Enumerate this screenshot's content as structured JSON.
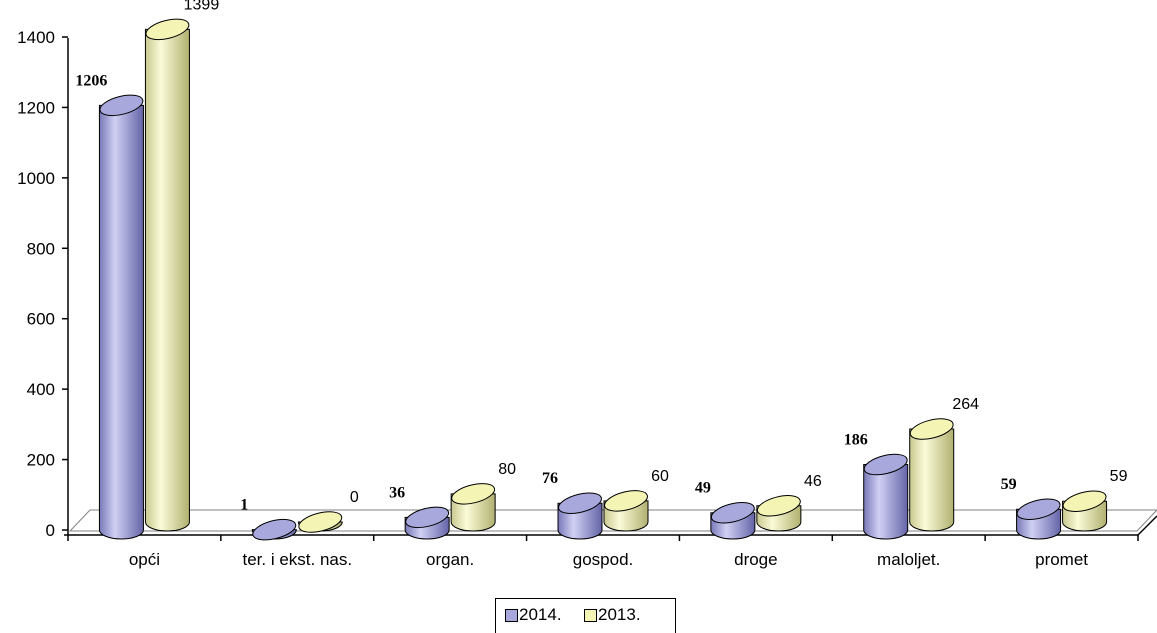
{
  "chart_data": {
    "type": "bar",
    "style": "3d-cylinder",
    "categories": [
      "opći",
      "ter. i ekst. nas.",
      "organ.",
      "gospod.",
      "droge",
      "maloljet.",
      "promet"
    ],
    "series": [
      {
        "name": "2014.",
        "values": [
          1206,
          1,
          36,
          76,
          49,
          186,
          59
        ],
        "color": "#a8a8dc",
        "label_bold": true
      },
      {
        "name": "2013.",
        "values": [
          1399,
          0,
          80,
          60,
          46,
          264,
          59
        ],
        "color": "#f4f4b4",
        "label_bold": false
      }
    ],
    "y_ticks": [
      "0",
      "200",
      "400",
      "600",
      "800",
      "1000",
      "1200",
      "1400"
    ],
    "ylim": [
      0,
      1400
    ],
    "legend_position": "bottom",
    "grid": false
  }
}
